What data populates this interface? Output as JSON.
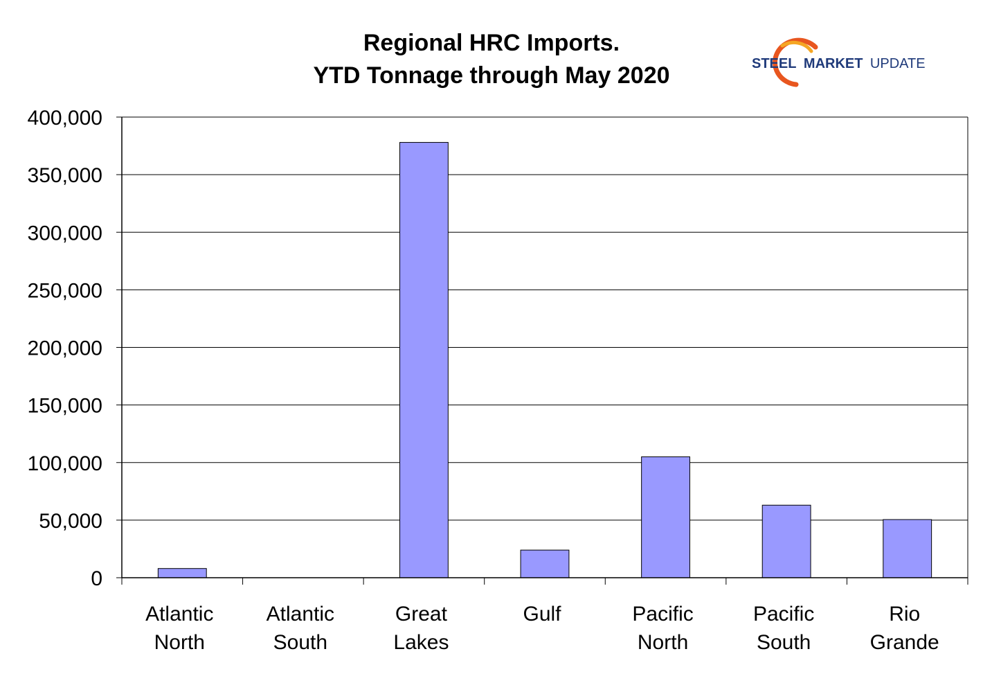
{
  "chart_data": {
    "type": "bar",
    "title_lines": [
      "Regional HRC Imports.",
      "YTD Tonnage through May 2020"
    ],
    "categories": [
      [
        "Atlantic",
        "North"
      ],
      [
        "Atlantic",
        "South"
      ],
      [
        "Great",
        "Lakes"
      ],
      [
        "Gulf"
      ],
      [
        "Pacific",
        "North"
      ],
      [
        "Pacific",
        "South"
      ],
      [
        "Rio",
        "Grande"
      ]
    ],
    "values": [
      8000,
      0,
      378000,
      24000,
      105000,
      63000,
      50500
    ],
    "ylim": [
      0,
      400000
    ],
    "yticks": [
      "0",
      "50,000",
      "100,000",
      "150,000",
      "200,000",
      "250,000",
      "300,000",
      "350,000",
      "400,000"
    ],
    "ytick_values": [
      0,
      50000,
      100000,
      150000,
      200000,
      250000,
      300000,
      350000,
      400000
    ],
    "xlabel": "",
    "ylabel": "",
    "grid": true,
    "legend": "none",
    "bar_color": "#9999ff",
    "bar_edge_color": "#000000"
  },
  "logo": {
    "word1": "STEEL",
    "word2": "MARKET",
    "word3": "UPDATE",
    "color_dark": "#1f3a7a",
    "color_accent": "#e8561f",
    "color_accent2": "#f5a623"
  }
}
